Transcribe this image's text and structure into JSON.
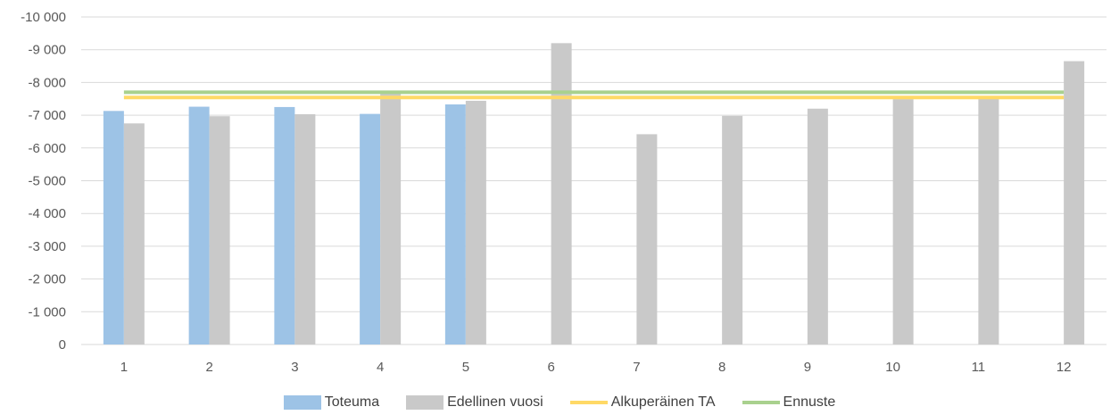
{
  "chart_data": {
    "type": "bar",
    "categories": [
      "1",
      "2",
      "3",
      "4",
      "5",
      "6",
      "7",
      "8",
      "9",
      "10",
      "11",
      "12"
    ],
    "yticks": [
      "-10 000",
      "-9 000",
      "-8 000",
      "-7 000",
      "-6 000",
      "-5 000",
      "-4 000",
      "-3 000",
      "-2 000",
      "-1 000",
      "0"
    ],
    "ylim": [
      0,
      -10000
    ],
    "y_inverted": true,
    "grid": true,
    "legend_position": "bottom",
    "series": [
      {
        "name": "Toteuma",
        "kind": "bar",
        "color": "#9dc3e6",
        "values": [
          -7130,
          -7260,
          -7250,
          -7040,
          -7330,
          null,
          null,
          null,
          null,
          null,
          null,
          null
        ]
      },
      {
        "name": "Edellinen vuosi",
        "kind": "bar",
        "color": "#c9c9c9",
        "values": [
          -6750,
          -6970,
          -7030,
          -7720,
          -7440,
          -9200,
          -6420,
          -6980,
          -7200,
          -7490,
          -7500,
          -8650
        ]
      },
      {
        "name": "Alkuperäinen TA",
        "kind": "line",
        "color": "#ffd966",
        "values": [
          -7540,
          -7540,
          -7540,
          -7540,
          -7540,
          -7540,
          -7540,
          -7540,
          -7540,
          -7540,
          -7540,
          -7540
        ]
      },
      {
        "name": "Ennuste",
        "kind": "line",
        "color": "#a9d18e",
        "values": [
          -7700,
          -7700,
          -7700,
          -7700,
          -7700,
          -7700,
          -7700,
          -7700,
          -7700,
          -7700,
          -7700,
          -7700
        ]
      }
    ]
  }
}
